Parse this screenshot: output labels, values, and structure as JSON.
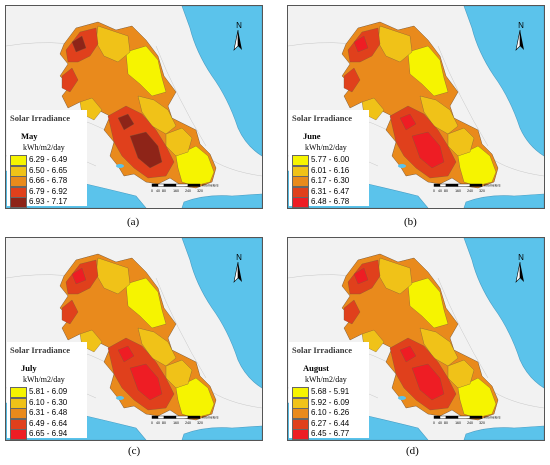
{
  "colors": {
    "sea": "#5bc3eb",
    "land": "#f0f0f0",
    "class1": "#f6f400",
    "class2": "#f0c218",
    "class3": "#e98a1c",
    "class4": "#e0401c",
    "class5_dark": "#8e2418",
    "class5_red": "#ee1d24"
  },
  "north_arrow": "N",
  "scale_bar_unit": "Kilometers",
  "scale_bar_ticks": [
    "0",
    "40",
    "80",
    "160",
    "240",
    "320"
  ],
  "panels": [
    {
      "legend_title": "Solar Irradiance",
      "month": "May",
      "unit": "kWh/m2/day",
      "classes": [
        {
          "range": "6.29 - 6.49",
          "color": "#f6f400"
        },
        {
          "range": "6.50 - 6.65",
          "color": "#f0c218"
        },
        {
          "range": "6.66 - 6.78",
          "color": "#e98a1c"
        },
        {
          "range": "6.79 - 6.92",
          "color": "#e0401c"
        },
        {
          "range": "6.93 - 7.17",
          "color": "#8e2418"
        }
      ],
      "caption": "(a)"
    },
    {
      "legend_title": "Solar Irradiance",
      "month": "June",
      "unit": "kWh/m2/day",
      "classes": [
        {
          "range": "5.77 - 6.00",
          "color": "#f6f400"
        },
        {
          "range": "6.01 - 6.16",
          "color": "#f0c218"
        },
        {
          "range": "6.17 - 6.30",
          "color": "#e98a1c"
        },
        {
          "range": "6.31 - 6.47",
          "color": "#e0401c"
        },
        {
          "range": "6.48 - 6.78",
          "color": "#ee1d24"
        }
      ],
      "caption": "(b)"
    },
    {
      "legend_title": "Solar Irradiance",
      "month": "July",
      "unit": "kWh/m2/day",
      "classes": [
        {
          "range": "5.81 - 6.09",
          "color": "#f6f400"
        },
        {
          "range": "6.10 - 6.30",
          "color": "#f0c218"
        },
        {
          "range": "6.31 - 6.48",
          "color": "#e98a1c"
        },
        {
          "range": "6.49 - 6.64",
          "color": "#e0401c"
        },
        {
          "range": "6.65 - 6.94",
          "color": "#ee1d24"
        }
      ],
      "caption": "(c)"
    },
    {
      "legend_title": "Solar Irradiance",
      "month": "August",
      "unit": "kWh/m2/day",
      "classes": [
        {
          "range": "5.68 - 5.91",
          "color": "#f6f400"
        },
        {
          "range": "5.92 - 6.09",
          "color": "#f0c218"
        },
        {
          "range": "6.10 - 6.26",
          "color": "#e98a1c"
        },
        {
          "range": "6.27 - 6.44",
          "color": "#e0401c"
        },
        {
          "range": "6.45 - 6.77",
          "color": "#ee1d24"
        }
      ],
      "caption": "(d)"
    }
  ]
}
